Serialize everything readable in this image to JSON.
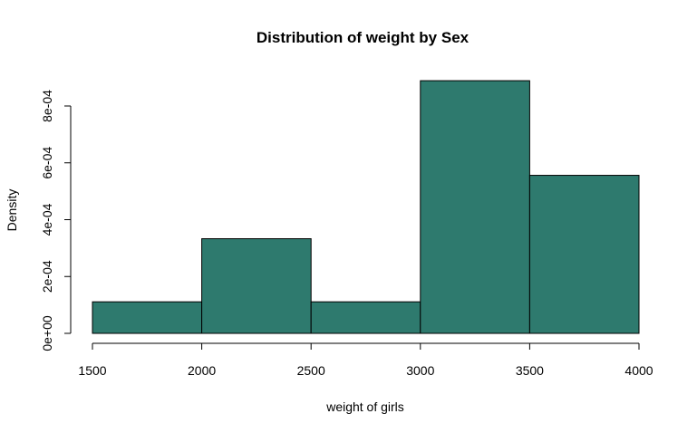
{
  "chart_data": {
    "type": "bar",
    "subtype": "histogram",
    "title": "Distribution of weight by Sex",
    "xlabel": "weight of girls",
    "ylabel": "Density",
    "bins": [
      {
        "start": 1500,
        "end": 2000,
        "density": 0.000111
      },
      {
        "start": 2000,
        "end": 2500,
        "density": 0.000333
      },
      {
        "start": 2500,
        "end": 3000,
        "density": 0.000111
      },
      {
        "start": 3000,
        "end": 3500,
        "density": 0.000889
      },
      {
        "start": 3500,
        "end": 4000,
        "density": 0.000556
      }
    ],
    "x_ticks": [
      1500,
      2000,
      2500,
      3000,
      3500,
      4000
    ],
    "x_tick_labels": [
      "1500",
      "2000",
      "2500",
      "3000",
      "3500",
      "4000"
    ],
    "y_ticks": [
      0,
      0.0002,
      0.0004,
      0.0006,
      0.0008
    ],
    "y_tick_labels": [
      "0e+00",
      "2e-04",
      "4e-04",
      "6e-04",
      "8e-04"
    ],
    "xlim": [
      1500,
      4000
    ],
    "ylim": [
      0,
      0.0008
    ],
    "grid": false,
    "bar_color": "#2e7a6e",
    "edge_color": "#000000"
  }
}
